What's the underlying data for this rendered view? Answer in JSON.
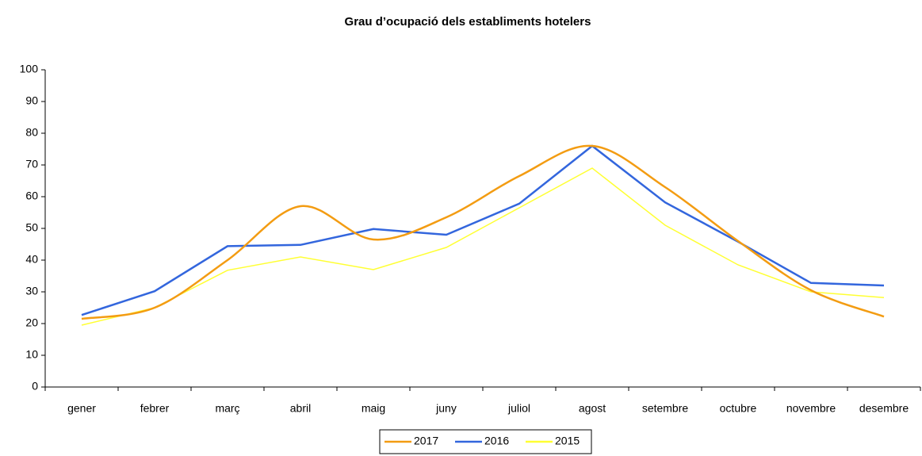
{
  "chart_data": {
    "type": "line",
    "title": "Grau d’ocupació dels establiments hotelers",
    "categories": [
      "gener",
      "febrer",
      "març",
      "abril",
      "maig",
      "juny",
      "juliol",
      "agost",
      "setembre",
      "octubre",
      "novembre",
      "desembre"
    ],
    "series": [
      {
        "name": "2017",
        "color": "#f39c12",
        "smooth": true,
        "values": [
          21.5,
          25,
          40,
          57,
          46.5,
          53.5,
          66.5,
          76,
          63,
          46,
          30.5,
          22.2
        ]
      },
      {
        "name": "2016",
        "color": "#3366dd",
        "smooth": false,
        "values": [
          22.7,
          30.2,
          44.4,
          44.8,
          49.8,
          48,
          57.8,
          76,
          58.2,
          45.8,
          32.8,
          32
        ]
      },
      {
        "name": "2015",
        "color": "#ffff33",
        "smooth": false,
        "values": [
          19.5,
          25,
          36.8,
          41,
          37,
          44,
          56.5,
          69,
          51,
          38.5,
          30,
          28.2
        ]
      }
    ],
    "ylim": [
      0,
      100
    ],
    "yticks": [
      0,
      10,
      20,
      30,
      40,
      50,
      60,
      70,
      80,
      90,
      100
    ],
    "grid": false,
    "legend": "bottom"
  }
}
